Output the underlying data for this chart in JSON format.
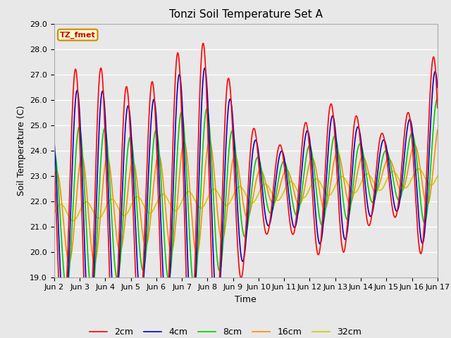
{
  "title": "Tonzi Soil Temperature Set A",
  "xlabel": "Time",
  "ylabel": "Soil Temperature (C)",
  "ylim": [
    19.0,
    29.0
  ],
  "yticks": [
    19.0,
    20.0,
    21.0,
    22.0,
    23.0,
    24.0,
    25.0,
    26.0,
    27.0,
    28.0,
    29.0
  ],
  "xtick_labels": [
    "Jun 2",
    "Jun 3",
    "Jun 4",
    "Jun 5",
    "Jun 6",
    "Jun 7",
    "Jun 8",
    "Jun 9",
    "Jun 10",
    "Jun 11",
    "Jun 12",
    "Jun 13",
    "Jun 14",
    "Jun 15",
    "Jun 16",
    "Jun 17"
  ],
  "colors": {
    "2cm": "#FF0000",
    "4cm": "#0000CC",
    "8cm": "#00CC00",
    "16cm": "#FF8C00",
    "32cm": "#CCCC00"
  },
  "legend_label": "TZ_fmet",
  "legend_box_color": "#FFFFCC",
  "legend_box_edge": "#CC8800",
  "bg_color": "#E8E8E8",
  "title_fontsize": 11,
  "label_fontsize": 9,
  "tick_fontsize": 8
}
